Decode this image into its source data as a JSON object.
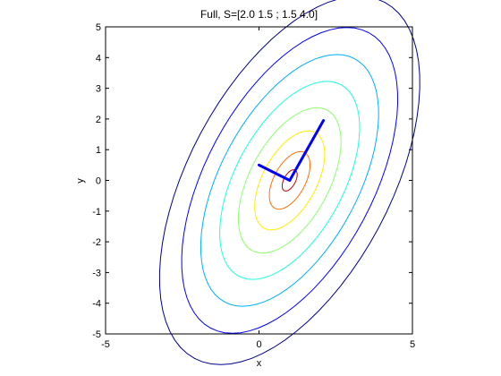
{
  "chart_data": {
    "type": "contour",
    "title": "Full, S=[2.0 1.5 ; 1.5  4.0]",
    "xlabel": "x",
    "ylabel": "y",
    "xlim": [
      -5,
      5
    ],
    "ylim": [
      -5,
      5
    ],
    "xticks": [
      -5,
      0,
      5
    ],
    "yticks": [
      -5,
      -4,
      -3,
      -2,
      -1,
      0,
      1,
      2,
      3,
      4,
      5
    ],
    "grid": false,
    "mean": [
      1,
      0
    ],
    "covariance": [
      [
        2.0,
        1.5
      ],
      [
        1.5,
        4.0
      ]
    ],
    "contour_levels": [
      {
        "mahalanobis_sq": 9.0,
        "color": "#00008f"
      },
      {
        "mahalanobis_sq": 6.2,
        "color": "#0000ff"
      },
      {
        "mahalanobis_sq": 4.2,
        "color": "#00afff"
      },
      {
        "mahalanobis_sq": 2.6,
        "color": "#20ffdf"
      },
      {
        "mahalanobis_sq": 1.4,
        "color": "#8fff70"
      },
      {
        "mahalanobis_sq": 0.65,
        "color": "#ffef00"
      },
      {
        "mahalanobis_sq": 0.22,
        "color": "#ff6f00"
      },
      {
        "mahalanobis_sq": 0.03,
        "color": "#bf0000"
      }
    ],
    "eigenvector_lines": [
      {
        "from": [
          1,
          0
        ],
        "to": [
          2.1,
          1.95
        ],
        "color": "#0000ff"
      },
      {
        "from": [
          1,
          0
        ],
        "to": [
          0,
          0.5
        ],
        "color": "#0000ff"
      }
    ]
  }
}
